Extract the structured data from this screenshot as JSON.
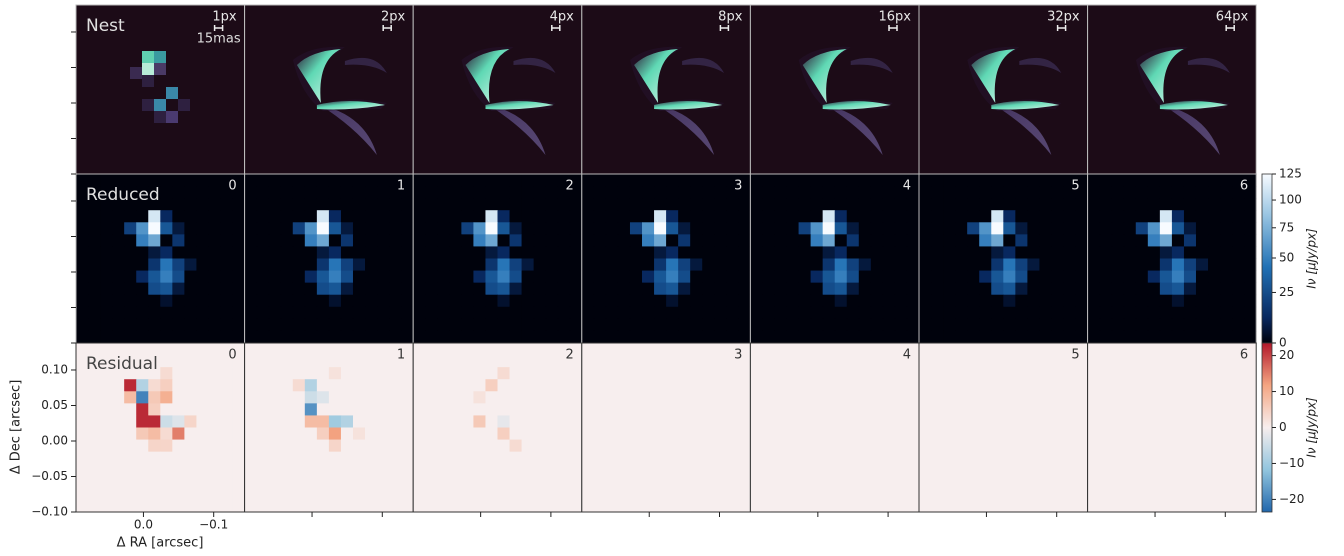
{
  "chart_data": {
    "type": "image-grid",
    "rows": [
      {
        "title": "Nest",
        "panel_labels": [
          "1px",
          "2px",
          "4px",
          "8px",
          "16px",
          "32px",
          "64px"
        ]
      },
      {
        "title": "Reduced",
        "panel_labels": [
          "0",
          "1",
          "2",
          "3",
          "4",
          "5",
          "6"
        ]
      },
      {
        "title": "Residual",
        "panel_labels": [
          "0",
          "1",
          "2",
          "3",
          "4",
          "5",
          "6"
        ]
      }
    ],
    "scale_bar_label": "15mas",
    "xlabel": "Δ RA [arcsec]",
    "ylabel": "Δ Dec [arcsec]",
    "xlim": [
      0.096,
      -0.144
    ],
    "xticks": [
      {
        "value": 0,
        "label": "0.0"
      },
      {
        "value": -0.1,
        "label": "−0.1"
      }
    ],
    "ylim": [
      -0.1,
      0.138
    ],
    "yticks": [
      {
        "value": 0.1,
        "label": "0.10"
      },
      {
        "value": 0.05,
        "label": "0.05"
      },
      {
        "value": 0,
        "label": "0.00"
      },
      {
        "value": -0.05,
        "label": "−0.05"
      },
      {
        "value": -0.1,
        "label": "−0.10"
      }
    ],
    "colorbars": [
      {
        "label": "Iν [μJy/px]",
        "lim": [
          0,
          125
        ],
        "power": 0.75,
        "ticks": [
          0,
          25,
          50,
          75,
          100,
          125
        ]
      },
      {
        "label": "Iν [μJy/px]",
        "lim": [
          -23.5,
          23.5
        ],
        "ticks": [
          {
            "value": -20,
            "label": "−20"
          },
          {
            "value": -10,
            "label": "−10"
          },
          0,
          10,
          20
        ]
      }
    ],
    "reduced_image": [
      [
        0,
        0,
        0,
        0,
        0,
        0,
        0,
        0,
        0,
        0,
        0,
        0,
        0,
        0
      ],
      [
        0,
        0,
        0,
        0,
        0,
        0,
        0,
        0,
        0,
        0,
        0,
        0,
        0,
        0
      ],
      [
        0,
        0,
        0,
        0,
        0,
        0,
        0,
        0,
        0,
        0,
        0,
        0,
        0,
        0
      ],
      [
        0,
        0,
        0,
        0,
        0,
        0,
        110,
        10,
        0,
        0,
        0,
        0,
        0,
        0
      ],
      [
        0,
        0,
        0,
        0,
        20,
        60,
        125,
        30,
        5,
        0,
        0,
        0,
        0,
        0
      ],
      [
        0,
        0,
        0,
        0,
        0,
        50,
        70,
        0,
        15,
        0,
        0,
        0,
        0,
        0
      ],
      [
        0,
        0,
        0,
        0,
        0,
        0,
        5,
        10,
        0,
        0,
        0,
        0,
        0,
        0
      ],
      [
        0,
        0,
        0,
        0,
        0,
        0,
        15,
        45,
        20,
        5,
        0,
        0,
        0,
        0
      ],
      [
        0,
        0,
        0,
        0,
        0,
        10,
        30,
        50,
        25,
        0,
        0,
        0,
        0,
        0
      ],
      [
        0,
        0,
        0,
        0,
        0,
        0,
        25,
        30,
        5,
        0,
        0,
        0,
        0,
        0
      ],
      [
        0,
        0,
        0,
        0,
        0,
        0,
        0,
        3,
        0,
        0,
        0,
        0,
        0,
        0
      ],
      [
        0,
        0,
        0,
        0,
        0,
        0,
        0,
        0,
        0,
        0,
        0,
        0,
        0,
        0
      ],
      [
        0,
        0,
        0,
        0,
        0,
        0,
        0,
        0,
        0,
        0,
        0,
        0,
        0,
        0
      ],
      [
        0,
        0,
        0,
        0,
        0,
        0,
        0,
        0,
        0,
        0,
        0,
        0,
        0,
        0
      ]
    ],
    "residual_images": [
      [
        [
          0,
          0,
          0,
          0,
          0,
          0,
          0,
          0,
          0,
          0,
          0,
          0,
          0,
          0
        ],
        [
          0,
          0,
          0,
          0,
          0,
          0,
          0,
          0,
          0,
          0,
          0,
          0,
          0,
          0
        ],
        [
          0,
          0,
          0,
          0,
          0,
          0,
          0,
          3,
          0,
          0,
          0,
          0,
          0,
          0
        ],
        [
          0,
          0,
          0,
          0,
          22,
          -8,
          3,
          5,
          0,
          0,
          0,
          0,
          0,
          0
        ],
        [
          0,
          0,
          0,
          0,
          8,
          -20,
          6,
          10,
          0,
          0,
          0,
          0,
          0,
          0
        ],
        [
          0,
          0,
          0,
          0,
          0,
          22,
          5,
          0,
          0,
          0,
          0,
          0,
          0,
          0
        ],
        [
          0,
          0,
          0,
          0,
          0,
          22,
          22,
          -5,
          -3,
          4,
          0,
          0,
          0,
          0
        ],
        [
          0,
          0,
          0,
          0,
          0,
          6,
          8,
          3,
          15,
          0,
          0,
          0,
          0,
          0
        ],
        [
          0,
          0,
          0,
          0,
          0,
          0,
          4,
          4,
          0,
          0,
          0,
          0,
          0,
          0
        ],
        [
          0,
          0,
          0,
          0,
          0,
          0,
          0,
          0,
          0,
          0,
          0,
          0,
          0,
          0
        ],
        [
          0,
          0,
          0,
          0,
          0,
          0,
          0,
          0,
          0,
          0,
          0,
          0,
          0,
          0
        ],
        [
          0,
          0,
          0,
          0,
          0,
          0,
          0,
          0,
          0,
          0,
          0,
          0,
          0,
          0
        ],
        [
          0,
          0,
          0,
          0,
          0,
          0,
          0,
          0,
          0,
          0,
          0,
          0,
          0,
          0
        ],
        [
          0,
          0,
          0,
          0,
          0,
          0,
          0,
          0,
          0,
          0,
          0,
          0,
          0,
          0
        ]
      ],
      [
        [
          0,
          0,
          0,
          0,
          0,
          0,
          0,
          0,
          0,
          0,
          0,
          0,
          0,
          0
        ],
        [
          0,
          0,
          0,
          0,
          0,
          0,
          0,
          0,
          0,
          0,
          0,
          0,
          0,
          0
        ],
        [
          0,
          0,
          0,
          0,
          0,
          0,
          0,
          2,
          0,
          0,
          0,
          0,
          0,
          0
        ],
        [
          0,
          0,
          0,
          0,
          3,
          -8,
          0,
          0,
          0,
          0,
          0,
          0,
          0,
          0
        ],
        [
          0,
          0,
          0,
          0,
          0,
          -5,
          -3,
          0,
          0,
          0,
          0,
          0,
          0,
          0
        ],
        [
          0,
          0,
          0,
          0,
          0,
          -18,
          0,
          0,
          0,
          0,
          0,
          0,
          0,
          0
        ],
        [
          0,
          0,
          0,
          0,
          0,
          8,
          8,
          -10,
          -8,
          0,
          0,
          0,
          0,
          0
        ],
        [
          0,
          0,
          0,
          0,
          0,
          0,
          5,
          12,
          0,
          2,
          0,
          0,
          0,
          0
        ],
        [
          0,
          0,
          0,
          0,
          0,
          0,
          0,
          4,
          0,
          0,
          0,
          0,
          0,
          0
        ],
        [
          0,
          0,
          0,
          0,
          0,
          0,
          0,
          0,
          0,
          0,
          0,
          0,
          0,
          0
        ],
        [
          0,
          0,
          0,
          0,
          0,
          0,
          0,
          0,
          0,
          0,
          0,
          0,
          0,
          0
        ],
        [
          0,
          0,
          0,
          0,
          0,
          0,
          0,
          0,
          0,
          0,
          0,
          0,
          0,
          0
        ],
        [
          0,
          0,
          0,
          0,
          0,
          0,
          0,
          0,
          0,
          0,
          0,
          0,
          0,
          0
        ],
        [
          0,
          0,
          0,
          0,
          0,
          0,
          0,
          0,
          0,
          0,
          0,
          0,
          0,
          0
        ]
      ],
      [
        [
          0,
          0,
          0,
          0,
          0,
          0,
          0,
          0,
          0,
          0,
          0,
          0,
          0,
          0
        ],
        [
          0,
          0,
          0,
          0,
          0,
          0,
          0,
          0,
          0,
          0,
          0,
          0,
          0,
          0
        ],
        [
          0,
          0,
          0,
          0,
          0,
          0,
          0,
          3,
          0,
          0,
          0,
          0,
          0,
          0
        ],
        [
          0,
          0,
          0,
          0,
          0,
          0,
          5,
          0,
          0,
          0,
          0,
          0,
          0,
          0
        ],
        [
          0,
          0,
          0,
          0,
          0,
          2,
          0,
          0,
          0,
          0,
          0,
          0,
          0,
          0
        ],
        [
          0,
          0,
          0,
          0,
          0,
          0,
          0,
          0,
          0,
          0,
          0,
          0,
          0,
          0
        ],
        [
          0,
          0,
          0,
          0,
          0,
          6,
          0,
          -2,
          0,
          0,
          0,
          0,
          0,
          0
        ],
        [
          0,
          0,
          0,
          0,
          0,
          0,
          0,
          5,
          0,
          0,
          0,
          0,
          0,
          0
        ],
        [
          0,
          0,
          0,
          0,
          0,
          0,
          0,
          0,
          3,
          0,
          0,
          0,
          0,
          0
        ],
        [
          0,
          0,
          0,
          0,
          0,
          0,
          0,
          0,
          0,
          0,
          0,
          0,
          0,
          0
        ],
        [
          0,
          0,
          0,
          0,
          0,
          0,
          0,
          0,
          0,
          0,
          0,
          0,
          0,
          0
        ],
        [
          0,
          0,
          0,
          0,
          0,
          0,
          0,
          0,
          0,
          0,
          0,
          0,
          0,
          0
        ],
        [
          0,
          0,
          0,
          0,
          0,
          0,
          0,
          0,
          0,
          0,
          0,
          0,
          0,
          0
        ],
        [
          0,
          0,
          0,
          0,
          0,
          0,
          0,
          0,
          0,
          0,
          0,
          0,
          0,
          0
        ]
      ]
    ]
  }
}
